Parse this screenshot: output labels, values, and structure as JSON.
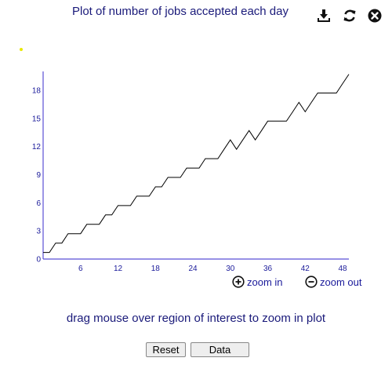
{
  "title": "Plot of number of jobs accepted each day",
  "toolbar": {
    "download_icon": "download-icon",
    "refresh_icon": "refresh-icon",
    "close_icon": "close-icon"
  },
  "zoom": {
    "zoom_in_label": "zoom in",
    "zoom_out_label": "zoom out"
  },
  "hint": "drag mouse over region of interest to zoom in plot",
  "buttons": {
    "reset_label": "Reset",
    "data_label": "Data"
  },
  "colors": {
    "axis": "#5a4fd6",
    "line": "#000000",
    "text": "#1a1a7a"
  },
  "chart_data": {
    "type": "line",
    "title": "Plot of number of jobs accepted each day",
    "xlabel": "",
    "ylabel": "",
    "xlim": [
      0,
      49
    ],
    "ylim": [
      0,
      20
    ],
    "x_ticks": [
      6,
      12,
      18,
      24,
      30,
      36,
      42,
      48
    ],
    "y_ticks": [
      0,
      3,
      6,
      9,
      12,
      15,
      18
    ],
    "grid": false,
    "series": [
      {
        "x": [
          0,
          1,
          2,
          3,
          4,
          5,
          6,
          7,
          8,
          9,
          10,
          11,
          12,
          13,
          14,
          15,
          16,
          17,
          18,
          19,
          20,
          21,
          22,
          23,
          24,
          25,
          26,
          27,
          28,
          29,
          30,
          31,
          32,
          33,
          34,
          35,
          36,
          37,
          38,
          39,
          40,
          41,
          42,
          43,
          44,
          45,
          46,
          47,
          48,
          49
        ],
        "y": [
          0.7,
          0.7,
          1.7,
          1.7,
          2.7,
          2.7,
          2.7,
          3.7,
          3.7,
          3.7,
          4.7,
          4.7,
          5.7,
          5.7,
          5.7,
          6.7,
          6.7,
          6.7,
          7.7,
          7.7,
          8.7,
          8.7,
          8.7,
          9.7,
          9.7,
          9.7,
          10.7,
          10.7,
          10.7,
          11.7,
          12.7,
          11.7,
          12.7,
          13.7,
          12.7,
          13.7,
          14.7,
          14.7,
          14.7,
          14.7,
          15.7,
          16.7,
          15.7,
          16.7,
          17.7,
          17.7,
          17.7,
          17.7,
          18.7,
          19.7
        ]
      }
    ]
  }
}
